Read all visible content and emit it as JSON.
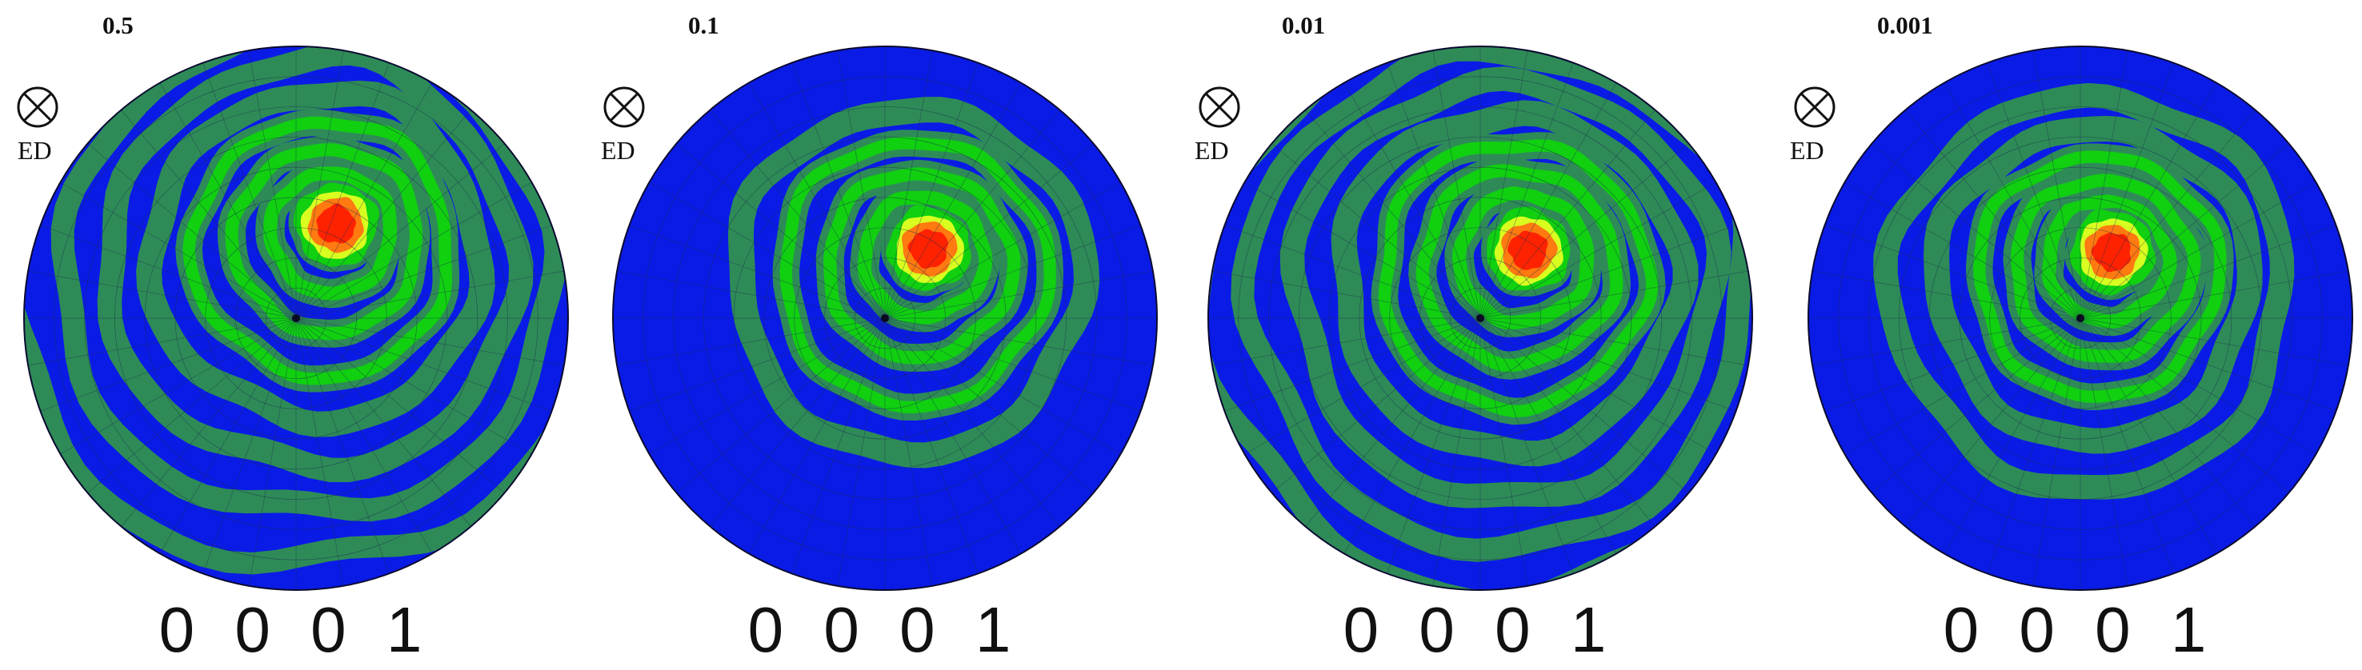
{
  "figure": {
    "direction_label": "ED",
    "direction_symbol": "into-page-cross-circle-icon",
    "colors": {
      "background_blue": "#0a1be6",
      "band_dark_green": "#2e8b57",
      "band_green": "#10d010",
      "band_yellow": "#d8ff20",
      "core_orange": "#ff7a10",
      "core_red": "#ff2200",
      "grid_line": "#1c2a50"
    },
    "panels": [
      {
        "value": "0.5",
        "pole_label": "0 0 0 1",
        "bands": [
          40,
          75,
          115,
          160,
          205,
          255,
          305,
          360
        ]
      },
      {
        "value": "0.1",
        "pole_label": "0 0 0 1",
        "bands": [
          40,
          75,
          115,
          165,
          215
        ]
      },
      {
        "value": "0.01",
        "pole_label": "0 0 0 1",
        "bands": [
          40,
          80,
          120,
          165,
          210,
          260,
          310,
          360
        ]
      },
      {
        "value": "0.001",
        "pole_label": "0 0 0 1",
        "bands": [
          40,
          75,
          110,
          150,
          195,
          245
        ]
      }
    ]
  }
}
